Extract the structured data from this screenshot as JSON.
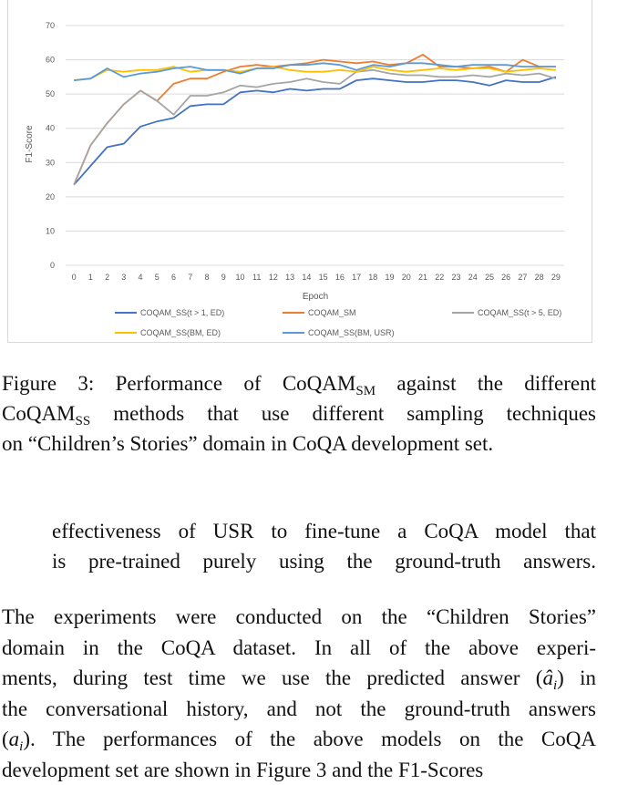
{
  "chart_data": {
    "type": "line",
    "title": "",
    "xlabel": "Epoch",
    "ylabel": "F1-Score",
    "x": [
      0,
      1,
      2,
      3,
      4,
      5,
      6,
      7,
      8,
      9,
      10,
      11,
      12,
      13,
      14,
      15,
      16,
      17,
      18,
      19,
      20,
      21,
      22,
      23,
      24,
      25,
      26,
      27,
      28,
      29
    ],
    "x_ticks": [
      "0",
      "1",
      "2",
      "3",
      "4",
      "5",
      "6",
      "7",
      "8",
      "9",
      "10",
      "11",
      "12",
      "13",
      "14",
      "15",
      "16",
      "17",
      "18",
      "19",
      "20",
      "21",
      "22",
      "23",
      "24",
      "25",
      "26",
      "27",
      "28",
      "29"
    ],
    "ylim": [
      0,
      70
    ],
    "y_ticks": [
      "0",
      "10",
      "20",
      "30",
      "40",
      "50",
      "60",
      "70"
    ],
    "grid": "horizontal",
    "legend_position": "bottom",
    "series": [
      {
        "name": "COQAM_SS(t > 1, ED)",
        "color": "#4472c4",
        "values": [
          23.5,
          29,
          34.5,
          35.5,
          40.5,
          42,
          43,
          46.5,
          47,
          47,
          50.5,
          51,
          50.5,
          51.5,
          51,
          51.5,
          51.5,
          54,
          54.5,
          54,
          53.5,
          53.5,
          54,
          54,
          53.5,
          52.5,
          54,
          53.5,
          53.5,
          55
        ]
      },
      {
        "name": "COQAM_SM",
        "color": "#ed7d31",
        "values": [
          23.5,
          35,
          41.5,
          47,
          51,
          48,
          53,
          54.5,
          54.5,
          56.5,
          58,
          58.5,
          58,
          58.5,
          59,
          60,
          59.5,
          59,
          59.5,
          58.5,
          59,
          61.5,
          58,
          58,
          57.5,
          58,
          56.5,
          60,
          58,
          58
        ]
      },
      {
        "name": "COQAM_SS(t > 5, ED)",
        "color": "#a5a5a5",
        "values": [
          23.5,
          35,
          41.5,
          47,
          51,
          48,
          44,
          49.5,
          49.5,
          50.5,
          52.5,
          52,
          53,
          53.5,
          54.5,
          53.5,
          53,
          56.5,
          57,
          56,
          55.5,
          55.5,
          55,
          55,
          55.5,
          55,
          56,
          55.5,
          56,
          54.5
        ]
      },
      {
        "name": "COQAM_SS(BM, ED)",
        "color": "#ffc000",
        "values": [
          54,
          54.5,
          57,
          56.5,
          57,
          57,
          58,
          56.5,
          57,
          57,
          56.5,
          57.5,
          58,
          57,
          56.5,
          56.5,
          57,
          56.5,
          58,
          57,
          56.5,
          57,
          57.5,
          57,
          57.5,
          57.5,
          56.5,
          57,
          57.5,
          57
        ]
      },
      {
        "name": "COQAM_SS(BM, USR)",
        "color": "#5b9bd5",
        "values": [
          54,
          54.5,
          57.5,
          55,
          56,
          56.5,
          57.5,
          58,
          57,
          57,
          56,
          57.5,
          57.5,
          58.5,
          58.5,
          59,
          58.5,
          57,
          58.5,
          58,
          59,
          59,
          58.5,
          58,
          58.5,
          58.5,
          58.5,
          58,
          58,
          58
        ]
      }
    ]
  },
  "caption": {
    "prefix": "Figure 3: Performance of CoQAM",
    "sub1": "SM",
    "mid1": " against the different",
    "coqam": "CoQAM",
    "sub2": "SS",
    "mid2": " methods that use different sampling techniques",
    "line3": "on “Children’s Stories” domain in CoQA development set."
  },
  "indent_text": {
    "line1": "effectiveness of USR to fine-tune a CoQA model that",
    "line2": "is pre-trained purely using the ground-truth answers."
  },
  "paragraph": {
    "line1": "The experiments were conducted on the “Children Stories”",
    "line2": "domain in the CoQA dataset.  In all of the above experi-",
    "line3_pre": "ments, during test time we use the predicted answer (",
    "line3_math": "â",
    "line3_sub": "i",
    "line3_post": ") in",
    "line4": "the conversational history, and not the ground-truth answers",
    "line5_pre": "(",
    "line5_math": "a",
    "line5_sub": "i",
    "line5_post": ").  The performances of the above models on the CoQA",
    "line6": "development set are shown in Figure 3 and the F1-Scores"
  }
}
